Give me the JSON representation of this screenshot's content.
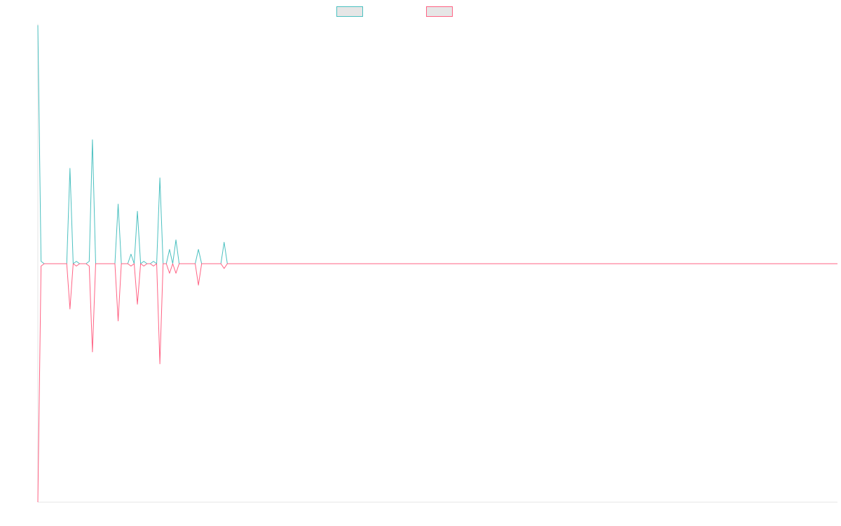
{
  "chart_data": {
    "type": "line",
    "title": "",
    "xlabel": "",
    "ylabel": "",
    "x_count": 250,
    "grid": false,
    "legend_position": "top",
    "series": [
      {
        "name": "",
        "color": "#4bc0c0",
        "spikes": [
          [
            0,
            100
          ],
          [
            1,
            1
          ],
          [
            10,
            40
          ],
          [
            12,
            1
          ],
          [
            16,
            1
          ],
          [
            17,
            52
          ],
          [
            25,
            25
          ],
          [
            29,
            4
          ],
          [
            31,
            22
          ],
          [
            33,
            1
          ],
          [
            36,
            1
          ],
          [
            38,
            36
          ],
          [
            41,
            6
          ],
          [
            43,
            10
          ],
          [
            50,
            6
          ],
          [
            58,
            9
          ]
        ]
      },
      {
        "name": "",
        "color": "#ff6384",
        "spikes": [
          [
            0,
            -100
          ],
          [
            1,
            -1
          ],
          [
            10,
            -19
          ],
          [
            12,
            -1
          ],
          [
            16,
            -1
          ],
          [
            17,
            -37
          ],
          [
            25,
            -24
          ],
          [
            29,
            -1
          ],
          [
            31,
            -17
          ],
          [
            33,
            -1
          ],
          [
            36,
            -1
          ],
          [
            38,
            -42
          ],
          [
            41,
            -4
          ],
          [
            43,
            -4
          ],
          [
            50,
            -9
          ],
          [
            58,
            -2
          ]
        ]
      }
    ],
    "ylim": [
      -100,
      100
    ]
  }
}
